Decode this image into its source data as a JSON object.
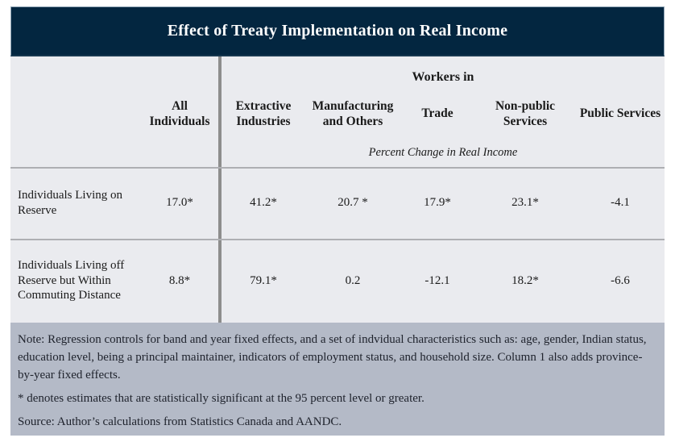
{
  "title": "Effect of Treaty Implementation on Real Income",
  "table": {
    "group_header": "Workers in",
    "units_subheader": "Percent Change in Real Income",
    "columns": [
      "All Individuals",
      "Extractive Industries",
      "Manufacturing and Others",
      "Trade",
      "Non-public Services",
      "Public Services"
    ],
    "rows": [
      {
        "label": "Individuals Living on Reserve",
        "values": [
          "17.0*",
          "41.2*",
          "20.7 *",
          "17.9*",
          "23.1*",
          "-4.1"
        ]
      },
      {
        "label": "Individuals Living off Reserve but Within Commuting Distance",
        "values": [
          "8.8*",
          "79.1*",
          "0.2",
          "-12.1",
          "18.2*",
          "-6.6"
        ]
      }
    ]
  },
  "notes": {
    "regression_note": "Note: Regression controls for band and year fixed effects, and a set of indvidual characteristics such as: age, gender, Indian status, education level, being a principal maintainer, indicators of employment status, and household size. Column 1 also adds province-by-year fixed effects.",
    "significance_note": "* denotes estimates that are statistically significant at the 95 percent level or greater.",
    "source_note": "Source: Author’s calculations from Statistics Canada and AANDC."
  },
  "colors": {
    "header_navy": "#032640",
    "table_background": "#eaebef",
    "notes_background": "#b4bac7",
    "divider_gray": "#8d8d8d",
    "rule_gray": "#aeafb3",
    "title_text": "#ffffff",
    "body_text": "#1a1a1a"
  }
}
